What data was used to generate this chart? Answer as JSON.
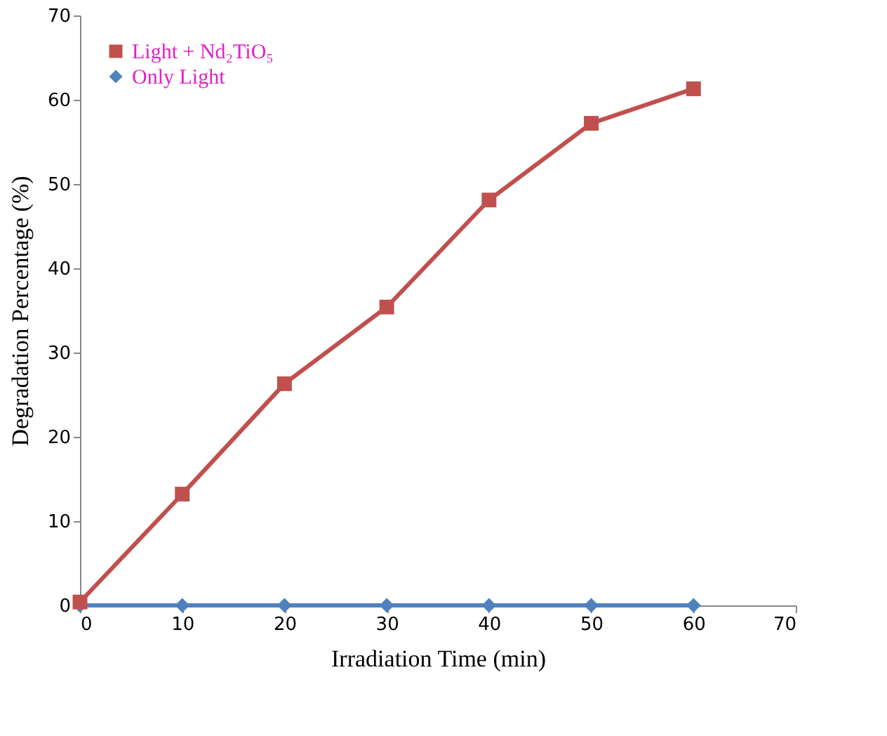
{
  "chart_data": {
    "type": "line",
    "xlabel": "Irradiation Time (min)",
    "ylabel": "Degradation Percentage (%)",
    "x": [
      0,
      10,
      20,
      30,
      40,
      50,
      60
    ],
    "series": [
      {
        "name": "Light + Nd₂TiO₅",
        "color": "#c0504d",
        "marker": "square",
        "values": [
          0.4,
          13.2,
          26.3,
          35.4,
          48.1,
          57.2,
          61.3
        ]
      },
      {
        "name": "Only Light",
        "color": "#4f81bd",
        "marker": "diamond",
        "values": [
          0,
          0,
          0,
          0,
          0,
          0,
          0
        ]
      }
    ],
    "xlim": [
      0,
      70
    ],
    "xticks": [
      0,
      10,
      20,
      30,
      40,
      50,
      60,
      70
    ],
    "ylim": [
      0,
      70
    ],
    "yticks": [
      0,
      10,
      20,
      30,
      40,
      50,
      60,
      70
    ],
    "grid": false,
    "legend": "top left",
    "line_style": "solid"
  }
}
